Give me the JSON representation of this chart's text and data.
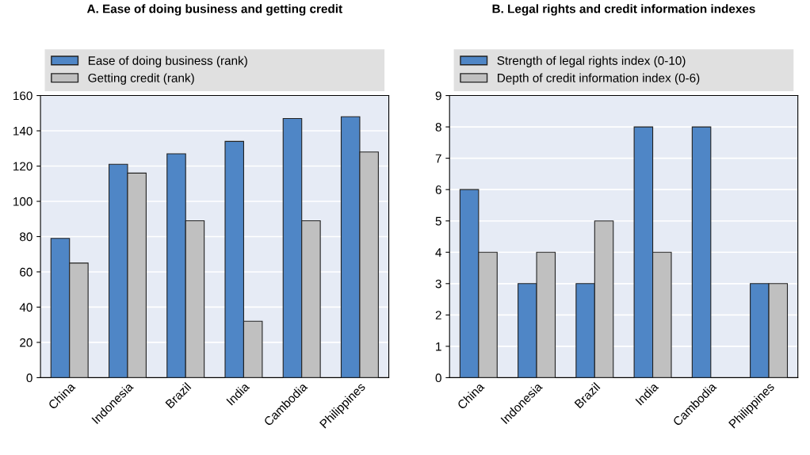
{
  "chart_data": [
    {
      "type": "bar",
      "title": "A. Ease of doing business and getting credit",
      "categories": [
        "China",
        "Indonesia",
        "Brazil",
        "India",
        "Cambodia",
        "Philippines"
      ],
      "series": [
        {
          "name": "Ease of doing business (rank)",
          "color": "#4f86c6",
          "values": [
            79,
            121,
            127,
            134,
            147,
            148
          ]
        },
        {
          "name": "Getting credit (rank)",
          "color": "#c0c0c0",
          "values": [
            65,
            116,
            89,
            32,
            89,
            128
          ]
        }
      ],
      "ylim": [
        0,
        160
      ],
      "yticks": [
        0,
        20,
        40,
        60,
        80,
        100,
        120,
        140,
        160
      ],
      "grid": "y",
      "legend": "top"
    },
    {
      "type": "bar",
      "title": "B. Legal rights and credit information indexes",
      "categories": [
        "China",
        "Indonesia",
        "Brazil",
        "India",
        "Cambodia",
        "Philippines"
      ],
      "series": [
        {
          "name": "Strength of legal rights index (0-10)",
          "color": "#4f86c6",
          "values": [
            6,
            3,
            3,
            8,
            8,
            3
          ]
        },
        {
          "name": "Depth of credit information index (0-6)",
          "color": "#c0c0c0",
          "values": [
            4,
            4,
            5,
            4,
            null,
            3
          ]
        }
      ],
      "ylim": [
        0,
        9
      ],
      "yticks": [
        0,
        1,
        2,
        3,
        4,
        5,
        6,
        7,
        8,
        9
      ],
      "grid": "y",
      "legend": "top"
    }
  ]
}
